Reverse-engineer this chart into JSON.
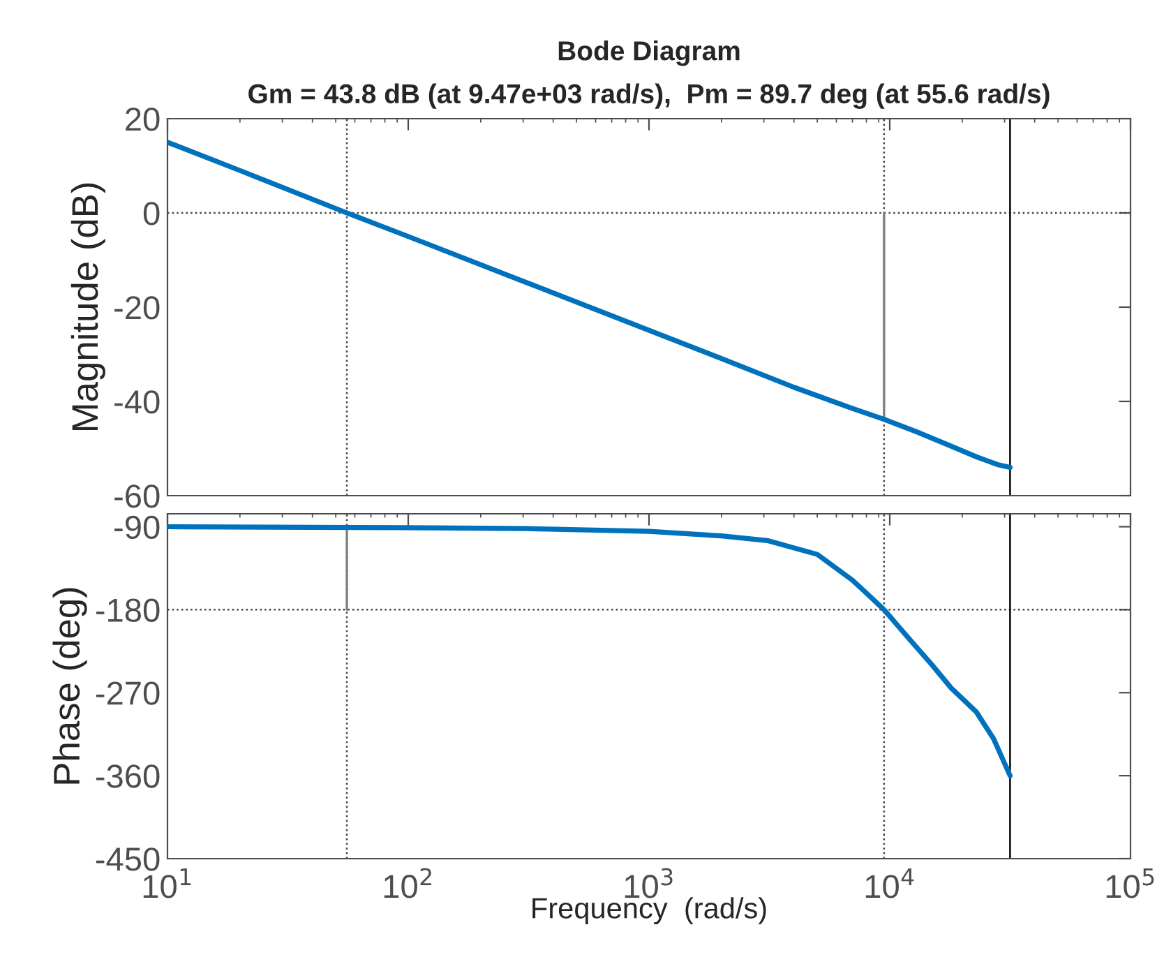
{
  "chart_data": [
    {
      "type": "line",
      "title": "Bode Diagram",
      "subtitle": "Gm = 43.8 dB (at 9.47e+03 rad/s),  Pm = 89.7 deg (at 55.6 rad/s)",
      "ylabel": "Magnitude (dB)",
      "log": "x",
      "tick_labels": "y",
      "grid": false,
      "xlim": [
        10,
        100000
      ],
      "xticks": [
        {
          "value": 10,
          "label": null
        },
        {
          "value": 100,
          "label": null
        },
        {
          "value": 1000,
          "label": null
        },
        {
          "value": 10000,
          "label": null
        },
        {
          "value": 100000,
          "label": null
        }
      ],
      "ylim": [
        -60,
        20
      ],
      "yticks": [
        -60,
        -40,
        -20,
        0,
        20
      ],
      "series": [
        {
          "color": "#0072bd",
          "x": [
            10,
            20,
            55.6,
            100,
            300,
            1000,
            2000,
            4000,
            7000,
            9470,
            13000,
            18000,
            23000,
            28000,
            31600
          ],
          "values": [
            15,
            9,
            0,
            -5,
            -14.5,
            -24.9,
            -30.9,
            -37,
            -41.5,
            -43.8,
            -46.5,
            -49.5,
            -51.8,
            -53.4,
            -54
          ]
        },
        {
          "color": "#808080",
          "x": [
            9470,
            9470
          ],
          "values": [
            -43.8,
            0
          ]
        }
      ],
      "ref_lines": [
        {
          "axis": "y",
          "value": 0,
          "color": "#404040",
          "line_style": "dotted"
        },
        {
          "axis": "x",
          "value": 55.6,
          "color": "#404040",
          "line_style": "dotted"
        },
        {
          "axis": "x",
          "value": 9470,
          "color": "#404040",
          "line_style": "dotted"
        },
        {
          "axis": "x",
          "value": 31600,
          "color": "#000000",
          "line_style": "solid"
        }
      ]
    },
    {
      "type": "line",
      "xlabel": "Frequency  (rad/s)",
      "ylabel": "Phase (deg)",
      "log": "x",
      "grid": false,
      "xlim": [
        10,
        100000
      ],
      "xticks": [
        {
          "value": 10,
          "label": "10$^{1}$"
        },
        {
          "value": 100,
          "label": "10$^{2}$"
        },
        {
          "value": 1000,
          "label": "10$^{3}$"
        },
        {
          "value": 10000,
          "label": "10$^{4}$"
        },
        {
          "value": 100000,
          "label": "10$^{5}$"
        }
      ],
      "ylim": [
        -450,
        -76
      ],
      "yticks": [
        -450,
        -360,
        -270,
        -180,
        -90
      ],
      "series": [
        {
          "color": "#0072bd",
          "x": [
            10,
            100,
            300,
            1000,
            2000,
            3100,
            5000,
            7000,
            8000,
            9470,
            11800,
            15000,
            18000,
            22900,
            27000,
            31600
          ],
          "values": [
            -90,
            -91,
            -92,
            -95,
            -100,
            -105,
            -120,
            -148,
            -162,
            -180,
            -209,
            -240,
            -265,
            -291,
            -320,
            -360
          ]
        },
        {
          "color": "#808080",
          "x": [
            55.6,
            55.6
          ],
          "values": [
            -90,
            -180
          ]
        }
      ],
      "ref_lines": [
        {
          "axis": "y",
          "value": -180,
          "color": "#404040",
          "line_style": "dotted"
        },
        {
          "axis": "x",
          "value": 55.6,
          "color": "#404040",
          "line_style": "dotted"
        },
        {
          "axis": "x",
          "value": 9470,
          "color": "#404040",
          "line_style": "dotted"
        },
        {
          "axis": "x",
          "value": 31600,
          "color": "#000000",
          "line_style": "solid"
        }
      ]
    }
  ]
}
